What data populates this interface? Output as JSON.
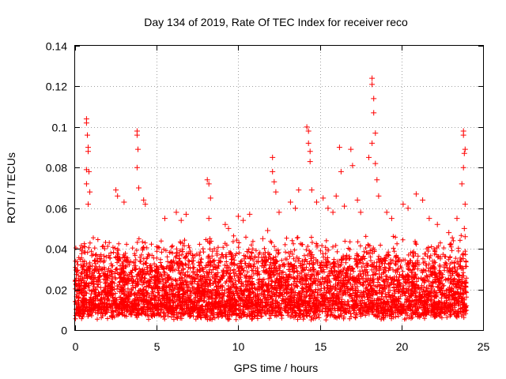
{
  "chart_data": {
    "type": "scatter",
    "title": "Day 134 of 2019, Rate Of TEC Index for receiver reco",
    "xlabel": "GPS time / hours",
    "ylabel": "ROTI / TECUs",
    "xlim": [
      0,
      25
    ],
    "ylim": [
      0,
      0.14
    ],
    "x_ticks": [
      0,
      5,
      10,
      15,
      20,
      25
    ],
    "x_tick_labels": [
      "0",
      "5",
      "10",
      "15",
      "20",
      "25"
    ],
    "y_ticks": [
      0,
      0.02,
      0.04,
      0.06,
      0.08,
      0.1,
      0.12,
      0.14
    ],
    "y_tick_labels": [
      "0",
      "0.02",
      "0.04",
      "0.06",
      "0.08",
      "0.1",
      "0.12",
      "0.14"
    ],
    "grid": true,
    "marker": "plus",
    "series": [
      {
        "color": "#ff0000",
        "points": [
          [
            0.7,
            0.104
          ],
          [
            0.7,
            0.102
          ],
          [
            0.75,
            0.096
          ],
          [
            0.8,
            0.09
          ],
          [
            0.8,
            0.088
          ],
          [
            0.7,
            0.079
          ],
          [
            0.85,
            0.078
          ],
          [
            0.7,
            0.072
          ],
          [
            0.9,
            0.068
          ],
          [
            0.8,
            0.062
          ],
          [
            2.5,
            0.069
          ],
          [
            2.6,
            0.066
          ],
          [
            3.0,
            0.063
          ],
          [
            3.8,
            0.098
          ],
          [
            3.8,
            0.096
          ],
          [
            3.85,
            0.089
          ],
          [
            3.8,
            0.08
          ],
          [
            3.9,
            0.07
          ],
          [
            4.2,
            0.064
          ],
          [
            4.3,
            0.062
          ],
          [
            5.5,
            0.055
          ],
          [
            6.2,
            0.058
          ],
          [
            6.5,
            0.054
          ],
          [
            6.8,
            0.057
          ],
          [
            8.1,
            0.074
          ],
          [
            8.2,
            0.072
          ],
          [
            8.3,
            0.065
          ],
          [
            8.2,
            0.055
          ],
          [
            9.2,
            0.052
          ],
          [
            9.4,
            0.05
          ],
          [
            10.0,
            0.056
          ],
          [
            10.3,
            0.054
          ],
          [
            10.7,
            0.057
          ],
          [
            11.5,
            0.045
          ],
          [
            11.8,
            0.049
          ],
          [
            12.1,
            0.085
          ],
          [
            12.1,
            0.078
          ],
          [
            12.2,
            0.073
          ],
          [
            12.3,
            0.068
          ],
          [
            12.5,
            0.058
          ],
          [
            13.2,
            0.063
          ],
          [
            13.5,
            0.06
          ],
          [
            13.7,
            0.069
          ],
          [
            14.2,
            0.1
          ],
          [
            14.3,
            0.098
          ],
          [
            14.3,
            0.092
          ],
          [
            14.4,
            0.088
          ],
          [
            14.4,
            0.083
          ],
          [
            14.5,
            0.069
          ],
          [
            14.8,
            0.063
          ],
          [
            15.2,
            0.065
          ],
          [
            15.5,
            0.06
          ],
          [
            15.8,
            0.058
          ],
          [
            16.0,
            0.066
          ],
          [
            16.2,
            0.09
          ],
          [
            16.3,
            0.078
          ],
          [
            16.5,
            0.061
          ],
          [
            16.9,
            0.089
          ],
          [
            17.0,
            0.081
          ],
          [
            17.3,
            0.064
          ],
          [
            17.5,
            0.058
          ],
          [
            18.0,
            0.085
          ],
          [
            18.2,
            0.124
          ],
          [
            18.2,
            0.121
          ],
          [
            18.3,
            0.114
          ],
          [
            18.3,
            0.107
          ],
          [
            18.4,
            0.097
          ],
          [
            18.2,
            0.092
          ],
          [
            18.4,
            0.082
          ],
          [
            18.5,
            0.074
          ],
          [
            18.6,
            0.066
          ],
          [
            19.1,
            0.058
          ],
          [
            19.4,
            0.055
          ],
          [
            20.1,
            0.062
          ],
          [
            20.4,
            0.06
          ],
          [
            20.9,
            0.067
          ],
          [
            21.3,
            0.064
          ],
          [
            21.7,
            0.055
          ],
          [
            22.2,
            0.052
          ],
          [
            22.9,
            0.048
          ],
          [
            23.4,
            0.055
          ],
          [
            23.7,
            0.072
          ],
          [
            23.8,
            0.098
          ],
          [
            23.8,
            0.096
          ],
          [
            23.9,
            0.089
          ],
          [
            23.85,
            0.087
          ],
          [
            23.8,
            0.08
          ],
          [
            23.9,
            0.062
          ],
          [
            23.85,
            0.05
          ],
          [
            23.9,
            0.046
          ]
        ],
        "band": {
          "note": "dense cloud of observations across 0-24 h",
          "x_range": [
            0,
            24
          ],
          "y_floor": [
            0.005,
            0.012
          ],
          "y_core_top": [
            0.03,
            0.047
          ]
        }
      }
    ]
  }
}
